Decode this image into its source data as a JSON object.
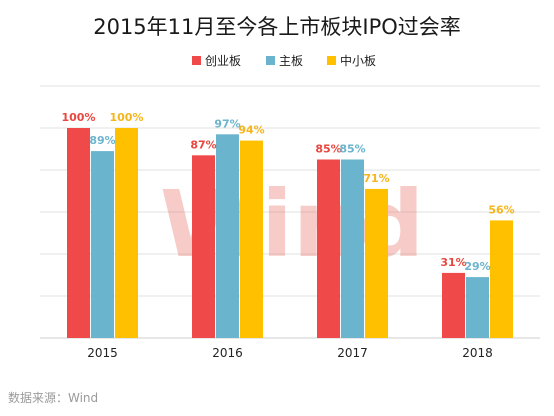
{
  "title": "2015年11月至今各上市板块IPO过会率",
  "source": "数据来源：Wind",
  "watermark": "Wind",
  "colors": {
    "series_0": "#f0494a",
    "series_1": "#6ab4cd",
    "series_2": "#ffc000",
    "label_0": "#e8473f",
    "label_1": "#6ab4cd",
    "label_2": "#f5b51b",
    "grid": "#e2e2e2"
  },
  "chart_data": {
    "type": "bar",
    "title": "2015年11月至今各上市板块IPO过会率",
    "categories": [
      "2015",
      "2016",
      "2017",
      "2018"
    ],
    "series": [
      {
        "name": "创业板",
        "values": [
          100,
          87,
          85,
          31
        ],
        "labels": [
          "100%",
          "87%",
          "85%",
          "31%"
        ]
      },
      {
        "name": "主板",
        "values": [
          89,
          97,
          85,
          29
        ],
        "labels": [
          "89%",
          "97%",
          "85%",
          "29%"
        ]
      },
      {
        "name": "中小板",
        "values": [
          100,
          94,
          71,
          56
        ],
        "labels": [
          "100%",
          "94%",
          "71%",
          "56%"
        ]
      }
    ],
    "ylim": [
      0,
      120
    ],
    "grid": true,
    "legend_position": "top-center",
    "xlabel": "",
    "ylabel": ""
  }
}
